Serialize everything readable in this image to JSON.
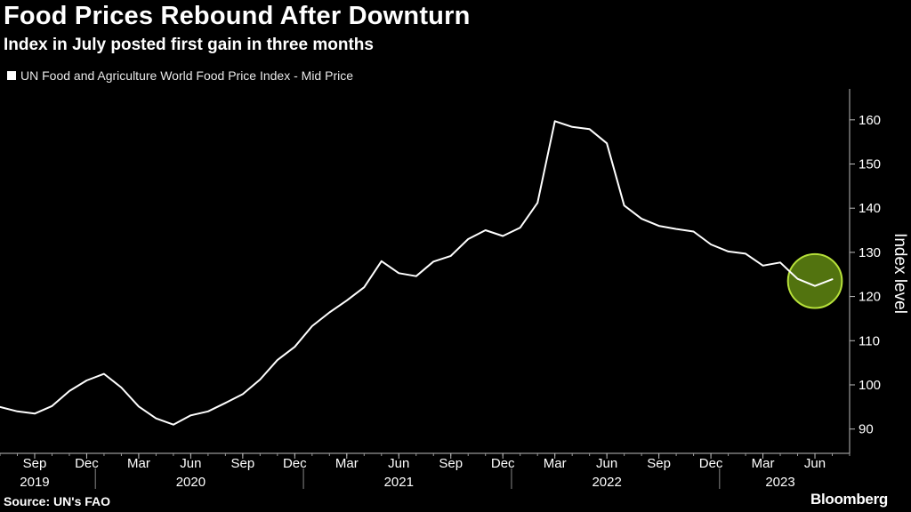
{
  "header": {
    "title": "Food Prices Rebound After Downturn",
    "subtitle": "Index in July posted first gain in three months"
  },
  "footer": {
    "source": "Source: UN's FAO",
    "brand": "Bloomberg"
  },
  "colors": {
    "background": "#000000",
    "line": "#ffffff",
    "highlight_fill": "#6e9a14",
    "highlight_stroke": "#b6e03a"
  },
  "chart_data": {
    "type": "line",
    "legend_position": "top-left",
    "grid": false,
    "ylabel": "Index level",
    "ylim": [
      84.5,
      166
    ],
    "yticks": [
      90,
      100,
      110,
      120,
      130,
      140,
      150,
      160
    ],
    "xlim": [
      "2019-07",
      "2023-08"
    ],
    "x_tick_months": [
      "Sep",
      "Dec",
      "Mar",
      "Jun",
      "Sep",
      "Dec",
      "Mar",
      "Jun",
      "Sep",
      "Dec",
      "Mar",
      "Jun",
      "Sep",
      "Dec",
      "Mar",
      "Jun"
    ],
    "x_tick_dates": [
      "2019-09",
      "2019-12",
      "2020-03",
      "2020-06",
      "2020-09",
      "2020-12",
      "2021-03",
      "2021-06",
      "2021-09",
      "2021-12",
      "2022-03",
      "2022-06",
      "2022-09",
      "2022-12",
      "2023-03",
      "2023-06"
    ],
    "x_year_labels": [
      {
        "label": "2019",
        "date": "2019-09"
      },
      {
        "label": "2020",
        "date": "2020-06"
      },
      {
        "label": "2021",
        "date": "2021-06"
      },
      {
        "label": "2022",
        "date": "2022-06"
      },
      {
        "label": "2023",
        "date": "2023-04"
      }
    ],
    "x_year_separators": [
      "2019-12",
      "2020-12",
      "2021-12",
      "2022-12"
    ],
    "series": [
      {
        "name": "UN Food and Agriculture World Food Price Index - Mid Price",
        "x": [
          "2019-07",
          "2019-08",
          "2019-09",
          "2019-10",
          "2019-11",
          "2019-12",
          "2020-01",
          "2020-02",
          "2020-03",
          "2020-04",
          "2020-05",
          "2020-06",
          "2020-07",
          "2020-08",
          "2020-09",
          "2020-10",
          "2020-11",
          "2020-12",
          "2021-01",
          "2021-02",
          "2021-03",
          "2021-04",
          "2021-05",
          "2021-06",
          "2021-07",
          "2021-08",
          "2021-09",
          "2021-10",
          "2021-11",
          "2021-12",
          "2022-01",
          "2022-02",
          "2022-03",
          "2022-04",
          "2022-05",
          "2022-06",
          "2022-07",
          "2022-08",
          "2022-09",
          "2022-10",
          "2022-11",
          "2022-12",
          "2023-01",
          "2023-02",
          "2023-03",
          "2023-04",
          "2023-05",
          "2023-06",
          "2023-07"
        ],
        "values": [
          95.0,
          94.0,
          93.5,
          95.2,
          98.6,
          101.0,
          102.5,
          99.4,
          95.1,
          92.4,
          91.0,
          93.1,
          94.0,
          95.9,
          97.9,
          101.2,
          105.6,
          108.6,
          113.3,
          116.4,
          119.1,
          122.1,
          128.0,
          125.3,
          124.6,
          127.9,
          129.2,
          133.0,
          135.0,
          133.7,
          135.6,
          141.2,
          159.7,
          158.4,
          157.9,
          154.7,
          140.6,
          137.6,
          136.0,
          135.3,
          134.7,
          131.8,
          130.2,
          129.7,
          127.0,
          127.7,
          124.0,
          122.4,
          123.9
        ]
      }
    ],
    "highlight": {
      "center_x": "2023-06",
      "center_y": 123.5,
      "radius_months": 1.2,
      "radius_units": 7.5
    }
  }
}
